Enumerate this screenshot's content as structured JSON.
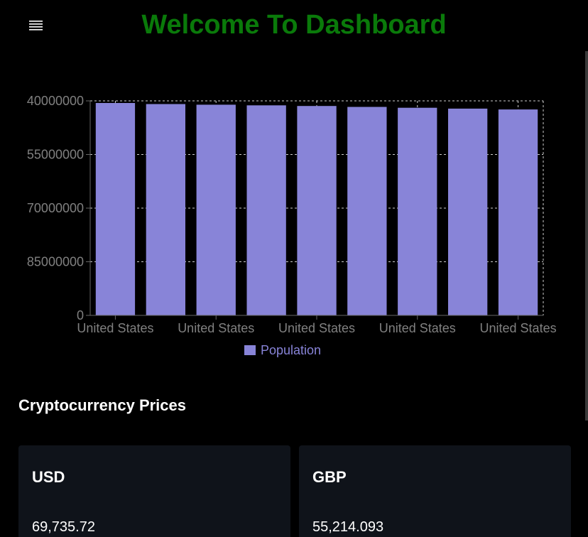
{
  "header": {
    "title": "Welcome To Dashboard",
    "title_color": "#0a7a0a",
    "menu_icon": "hamburger-menu-icon"
  },
  "chart_data": {
    "type": "bar",
    "categories": [
      "United States",
      "United States",
      "United States",
      "United States",
      "United States",
      "United States",
      "United States",
      "United States",
      "United States"
    ],
    "xtick_labels": [
      "United States",
      "United States",
      "United States",
      "United States",
      "United States"
    ],
    "yticks": [
      "40000000",
      "55000000",
      "70000000",
      "85000000",
      "0"
    ],
    "series": [
      {
        "name": "Population",
        "color": "#8884d8",
        "values": [
          99000000,
          98500000,
          98200000,
          97900000,
          97600000,
          97200000,
          96800000,
          96400000,
          96000000
        ]
      }
    ],
    "grid": true,
    "legend_position": "bottom"
  },
  "crypto": {
    "section_title": "Cryptocurrency Prices",
    "cards": [
      {
        "label": "USD",
        "value": "69,735.72"
      },
      {
        "label": "GBP",
        "value": "55,214.093"
      }
    ]
  }
}
